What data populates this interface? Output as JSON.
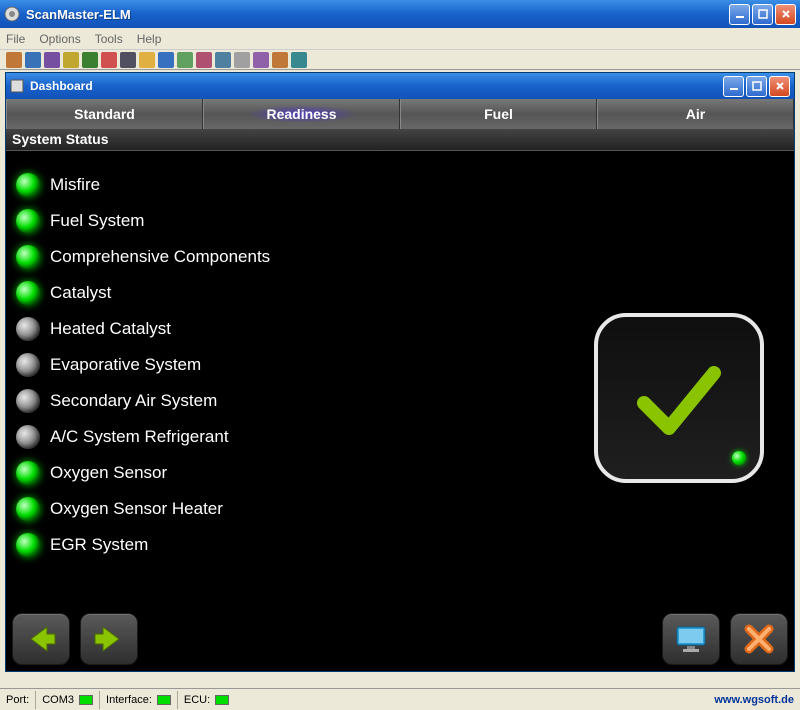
{
  "app": {
    "title": "ScanMaster-ELM"
  },
  "menu": {
    "file": "File",
    "options": "Options",
    "tools": "Tools",
    "help": "Help"
  },
  "dashboard": {
    "title": "Dashboard",
    "tabs": {
      "standard": "Standard",
      "readiness": "Readiness",
      "fuel": "Fuel",
      "air": "Air"
    },
    "section_header": "System Status",
    "rows": [
      {
        "label": "Misfire",
        "state": "green"
      },
      {
        "label": "Fuel System",
        "state": "green"
      },
      {
        "label": "Comprehensive Components",
        "state": "green"
      },
      {
        "label": "Catalyst",
        "state": "green"
      },
      {
        "label": "Heated Catalyst",
        "state": "off"
      },
      {
        "label": "Evaporative System",
        "state": "off"
      },
      {
        "label": "Secondary Air System",
        "state": "off"
      },
      {
        "label": "A/C System Refrigerant",
        "state": "off"
      },
      {
        "label": "Oxygen Sensor",
        "state": "green"
      },
      {
        "label": "Oxygen Sensor Heater",
        "state": "green"
      },
      {
        "label": "EGR System",
        "state": "green"
      }
    ],
    "colors": {
      "green_led": "#00e000",
      "off_led": "#888888",
      "panel_bg": "#000000",
      "arrow": "#8ac400",
      "monitor": "#2a9fd6",
      "close_x": "#e06a1a",
      "checkmark": "#8ac400"
    }
  },
  "statusbar": {
    "port_label": "Port:",
    "port_value": "COM3",
    "interface_label": "Interface:",
    "ecu_label": "ECU:",
    "url": "www.wgsoft.de"
  },
  "toolbar_icon_colors": [
    "#c07838",
    "#3a72b8",
    "#764fa0",
    "#c0a830",
    "#3a8030",
    "#d05050",
    "#505060",
    "#e0b040",
    "#3870c0",
    "#60a060",
    "#b05070",
    "#5080a0",
    "#a0a0a0",
    "#9060a8",
    "#c07838",
    "#388890"
  ]
}
